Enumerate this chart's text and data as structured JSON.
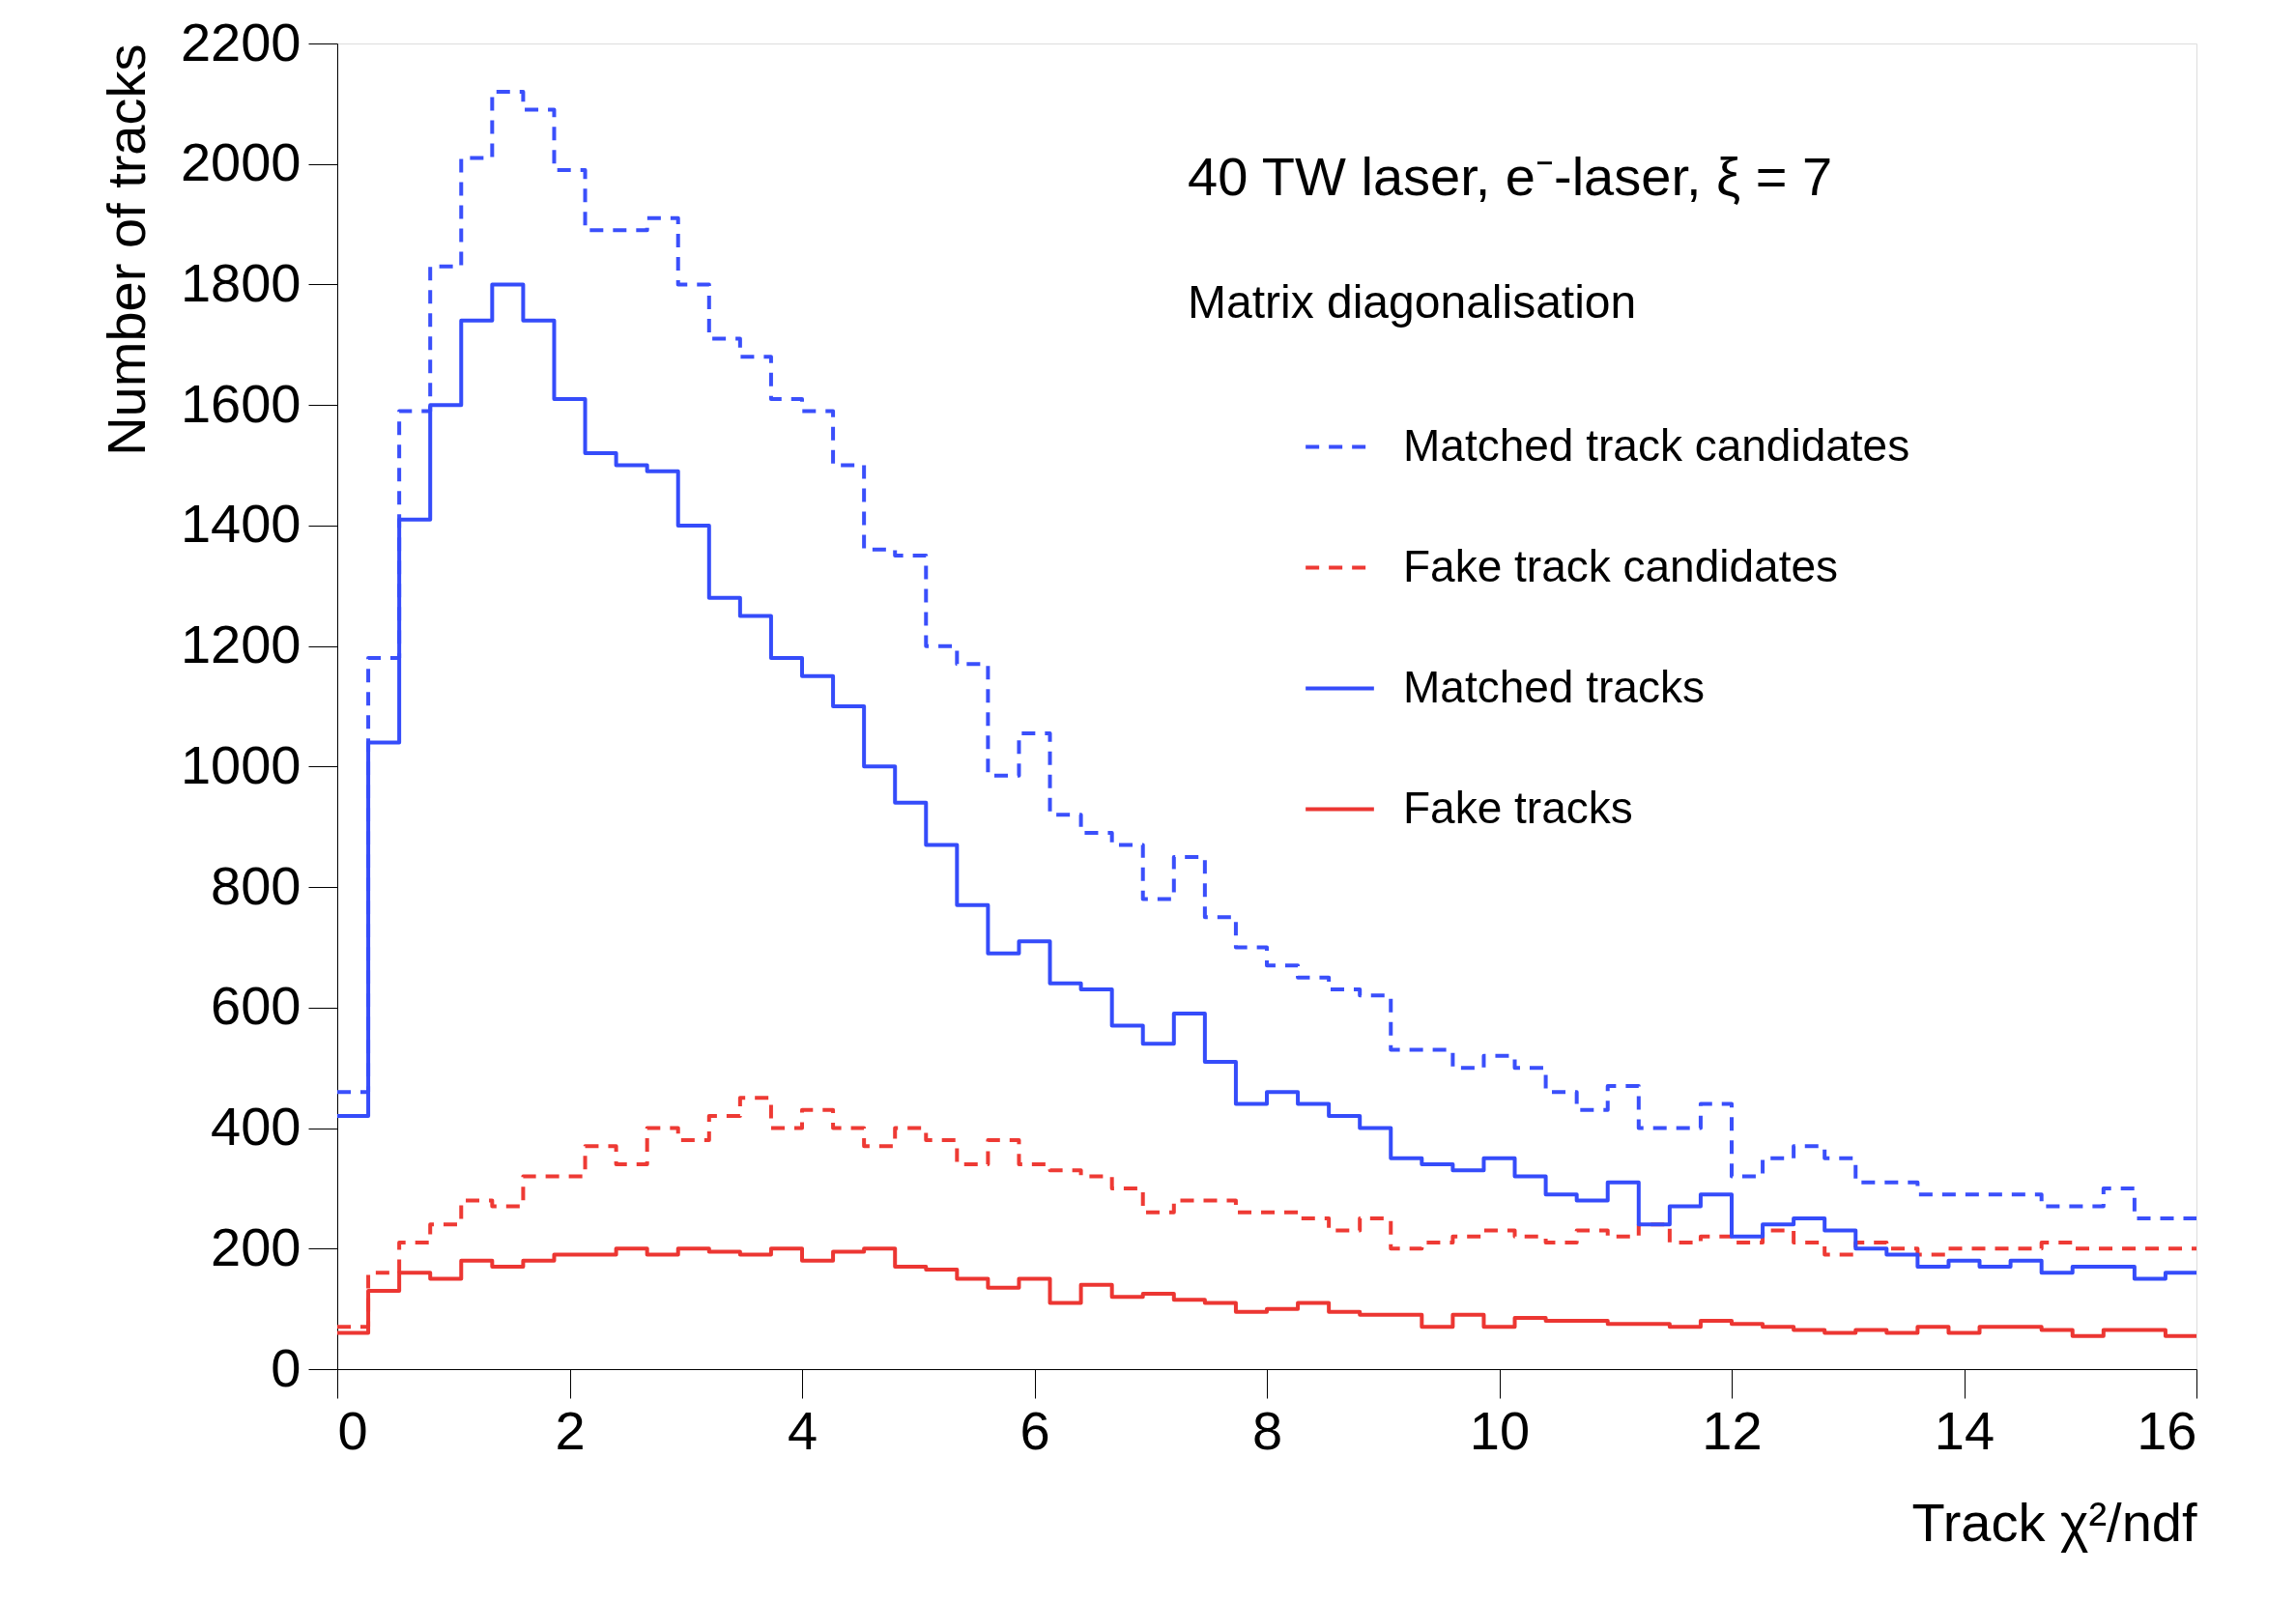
{
  "chart_data": {
    "type": "histogram",
    "xlabel": "Track χ²/ndf",
    "ylabel": "Number of tracks",
    "annotations": [
      "40 TW laser, e⁻-laser, ξ = 7",
      "Matrix diagonalisation"
    ],
    "bins": [
      0,
      0.2667,
      0.5333,
      0.8,
      1.0667,
      1.3333,
      1.6,
      1.8667,
      2.1333,
      2.4,
      2.6667,
      2.9333,
      3.2,
      3.4667,
      3.7333,
      4,
      4.2667,
      4.5333,
      4.8,
      5.0667,
      5.3333,
      5.6,
      5.8667,
      6.1333,
      6.4,
      6.6667,
      6.9333,
      7.2,
      7.4667,
      7.7333,
      8,
      8.2667,
      8.5333,
      8.8,
      9.0667,
      9.3333,
      9.6,
      9.8667,
      10.1333,
      10.4,
      10.6667,
      10.9333,
      11.2,
      11.4667,
      11.7333,
      12,
      12.2667,
      12.5333,
      12.8,
      13.0667,
      13.3333,
      13.6,
      13.8667,
      14.1333,
      14.4,
      14.6667,
      14.9333,
      15.2,
      15.4667,
      15.7333,
      16
    ],
    "series": [
      {
        "name": "Matched track candidates",
        "color": "#3a4ffb",
        "line_style": "dashed",
        "values": [
          460,
          1180,
          1590,
          1830,
          2010,
          2120,
          2090,
          1990,
          1890,
          1890,
          1910,
          1800,
          1710,
          1680,
          1610,
          1590,
          1500,
          1360,
          1350,
          1200,
          1170,
          985,
          1055,
          920,
          890,
          870,
          780,
          850,
          750,
          700,
          670,
          650,
          630,
          620,
          530,
          530,
          500,
          520,
          500,
          460,
          430,
          470,
          400,
          400,
          440,
          320,
          350,
          370,
          350,
          310,
          310,
          290,
          290,
          290,
          290,
          270,
          270,
          300,
          250,
          250
        ]
      },
      {
        "name": "Fake track candidates",
        "color": "#ee3a34",
        "line_style": "dashed",
        "values": [
          70,
          160,
          210,
          240,
          280,
          270,
          320,
          320,
          370,
          340,
          400,
          380,
          420,
          450,
          400,
          430,
          400,
          370,
          400,
          380,
          340,
          380,
          340,
          330,
          320,
          300,
          260,
          280,
          280,
          260,
          260,
          250,
          230,
          250,
          200,
          210,
          220,
          230,
          220,
          210,
          230,
          220,
          240,
          210,
          220,
          210,
          230,
          210,
          190,
          210,
          200,
          190,
          200,
          200,
          200,
          210,
          200,
          200,
          200,
          200
        ]
      },
      {
        "name": "Matched tracks",
        "color": "#354cfa",
        "line_style": "solid",
        "values": [
          420,
          1040,
          1410,
          1600,
          1740,
          1800,
          1740,
          1610,
          1520,
          1500,
          1490,
          1400,
          1280,
          1250,
          1180,
          1150,
          1100,
          1000,
          940,
          870,
          770,
          690,
          710,
          640,
          630,
          570,
          540,
          590,
          510,
          440,
          460,
          440,
          420,
          400,
          350,
          340,
          330,
          350,
          320,
          290,
          280,
          310,
          240,
          270,
          290,
          220,
          240,
          250,
          230,
          200,
          190,
          170,
          180,
          170,
          180,
          160,
          170,
          170,
          150,
          160
        ]
      },
      {
        "name": "Fake tracks",
        "color": "#ec3632",
        "line_style": "solid",
        "values": [
          60,
          130,
          160,
          150,
          180,
          170,
          180,
          190,
          190,
          200,
          190,
          200,
          195,
          190,
          200,
          180,
          195,
          200,
          170,
          165,
          150,
          135,
          150,
          110,
          140,
          120,
          125,
          115,
          110,
          95,
          100,
          110,
          95,
          90,
          90,
          70,
          90,
          70,
          85,
          80,
          80,
          75,
          75,
          70,
          80,
          75,
          70,
          65,
          60,
          65,
          60,
          70,
          60,
          70,
          70,
          65,
          55,
          65,
          65,
          55
        ]
      }
    ],
    "xlim": [
      0,
      16
    ],
    "xticks": [
      0,
      2,
      4,
      6,
      8,
      10,
      12,
      14,
      16
    ],
    "ylim": [
      0,
      2200
    ],
    "yticks": [
      0,
      200,
      400,
      600,
      800,
      1000,
      1200,
      1400,
      1600,
      1800,
      2000,
      2200
    ],
    "grid": false,
    "legend": "top right"
  }
}
